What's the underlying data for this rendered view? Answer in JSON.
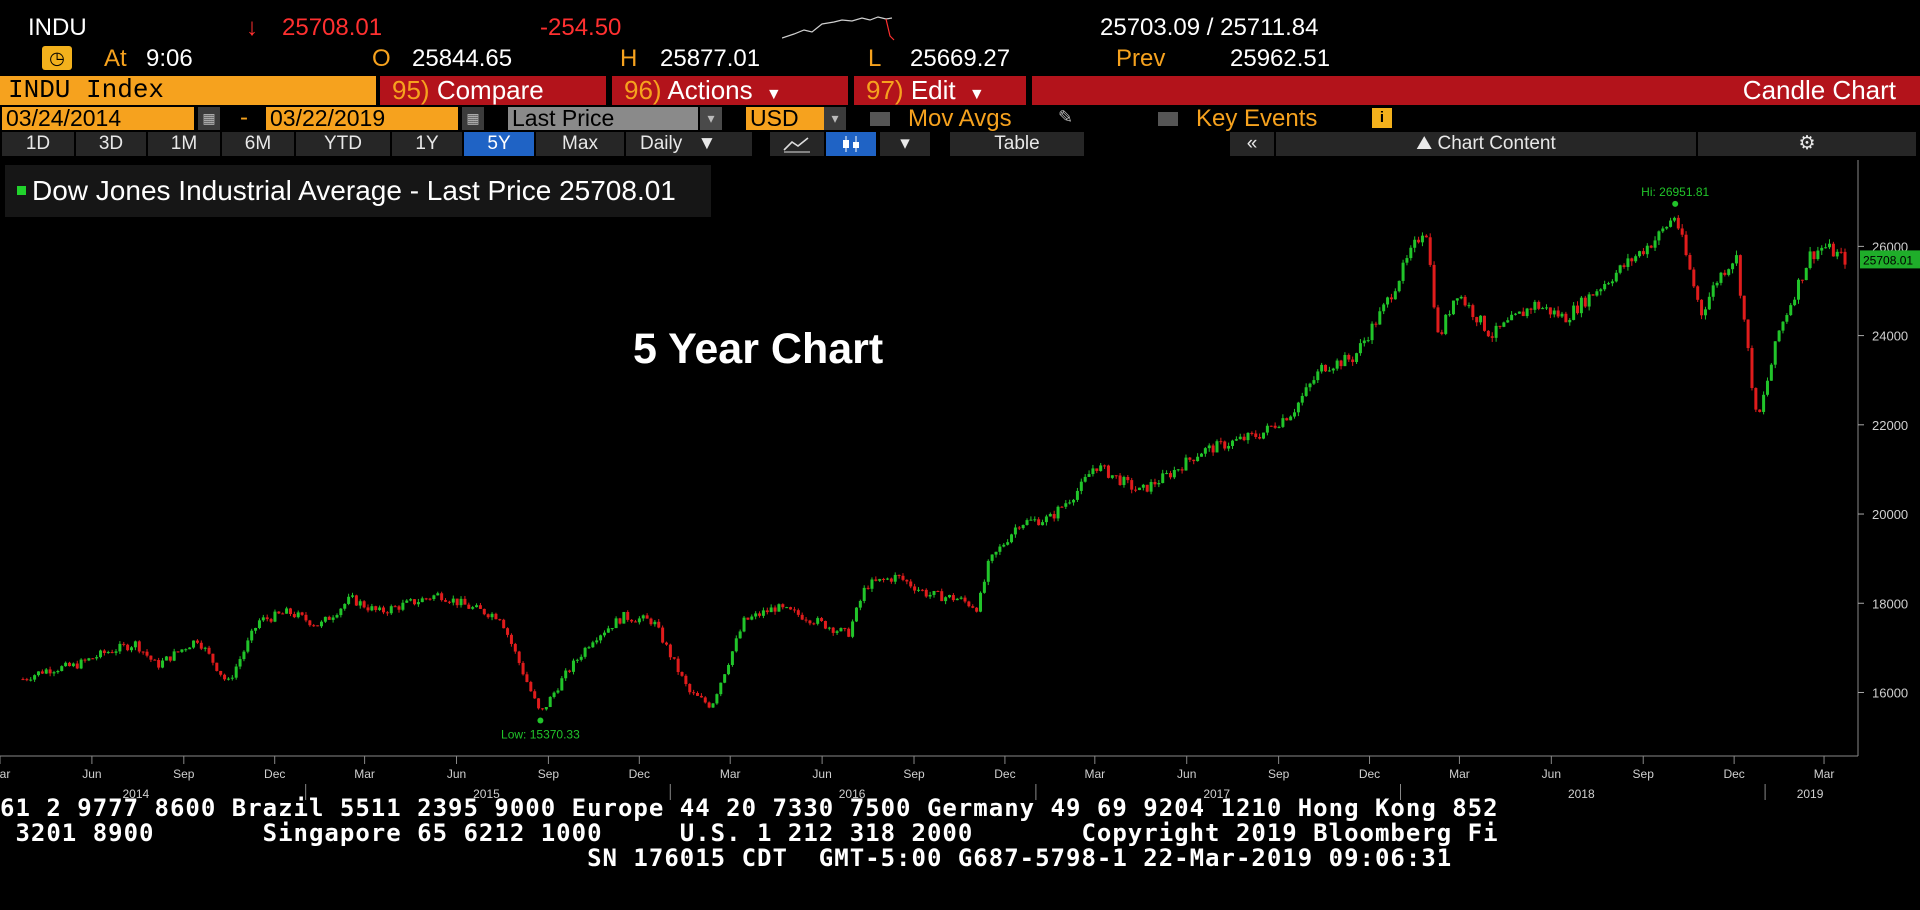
{
  "quote": {
    "ticker": "INDU",
    "arrow": "↓",
    "last": "25708.01",
    "change": "-254.50",
    "bid_ask": "25703.09 / 25711.84",
    "at_label": "At",
    "time": "9:06",
    "open_label": "O",
    "open": "25844.65",
    "high_label": "H",
    "high": "25877.01",
    "low_label": "L",
    "low": "25669.27",
    "prev_label": "Prev",
    "prev": "25962.51"
  },
  "toolbar": {
    "security": "INDU Index",
    "compare_num": "95)",
    "compare": "Compare",
    "actions_num": "96)",
    "actions": "Actions",
    "edit_num": "97)",
    "edit": "Edit",
    "chart_type": "Candle Chart"
  },
  "controls": {
    "start_date": "03/24/2014",
    "dash": "-",
    "end_date": "03/22/2019",
    "field": "Last Price",
    "currency": "USD",
    "mov_avgs": "Mov Avgs",
    "key_events": "Key Events"
  },
  "periods": [
    "1D",
    "3D",
    "1M",
    "6M",
    "YTD",
    "1Y",
    "5Y",
    "Max"
  ],
  "active_period": "5Y",
  "frequency": "Daily",
  "table_label": "Table",
  "chart_content_label": "Chart Content",
  "legend": {
    "series": "Dow Jones Industrial Average - Last Price",
    "value": "25708.01"
  },
  "overlay_title": "5 Year Chart",
  "colors": {
    "up": "#21c42a",
    "down": "#e01c1c",
    "amber": "#f6a21e",
    "negative": "#ff3030",
    "toolbar_red": "#b3131b",
    "active_tab": "#1f63c5"
  },
  "chart_data": {
    "type": "line",
    "style": "candlestick",
    "title": "Dow Jones Industrial Average - Last Price",
    "ylim": [
      14800,
      27600
    ],
    "yticks": [
      16000,
      18000,
      20000,
      22000,
      24000,
      26000
    ],
    "last_value_label": "25708.01",
    "high_annotation": "Hi: 26951.81",
    "low_annotation": "Low: 15370.33",
    "month_labels": [
      "Mar",
      "Jun",
      "Sep",
      "Dec",
      "Mar",
      "Jun",
      "Sep",
      "Dec",
      "Mar",
      "Jun",
      "Sep",
      "Dec",
      "Mar",
      "Jun",
      "Sep",
      "Dec",
      "Mar",
      "Jun",
      "Sep",
      "Dec",
      "Mar"
    ],
    "year_labels": [
      "2014",
      "2015",
      "2016",
      "2017",
      "2018",
      "2019"
    ],
    "series": [
      {
        "name": "Dow Jones Industrial Average",
        "x": [
          "2014-03-24",
          "2014-04-15",
          "2014-05-15",
          "2014-06-15",
          "2014-07-15",
          "2014-08-05",
          "2014-09-15",
          "2014-10-15",
          "2014-11-15",
          "2014-12-15",
          "2015-01-15",
          "2015-02-15",
          "2015-03-15",
          "2015-04-15",
          "2015-05-15",
          "2015-06-15",
          "2015-07-15",
          "2015-08-24",
          "2015-09-15",
          "2015-10-15",
          "2015-11-15",
          "2015-12-15",
          "2016-01-20",
          "2016-02-11",
          "2016-03-15",
          "2016-04-15",
          "2016-05-15",
          "2016-06-27",
          "2016-07-15",
          "2016-08-15",
          "2016-09-15",
          "2016-10-15",
          "2016-11-04",
          "2016-11-15",
          "2016-12-15",
          "2017-01-15",
          "2017-02-15",
          "2017-03-01",
          "2017-04-15",
          "2017-05-15",
          "2017-06-15",
          "2017-07-15",
          "2017-08-15",
          "2017-09-15",
          "2017-10-15",
          "2017-11-15",
          "2017-12-15",
          "2018-01-26",
          "2018-02-08",
          "2018-02-26",
          "2018-04-02",
          "2018-05-15",
          "2018-06-15",
          "2018-07-15",
          "2018-08-15",
          "2018-09-15",
          "2018-10-03",
          "2018-10-29",
          "2018-11-15",
          "2018-12-03",
          "2018-12-24",
          "2019-01-15",
          "2019-02-15",
          "2019-03-01",
          "2019-03-22"
        ],
        "values": [
          16300,
          16500,
          16600,
          16900,
          17100,
          16600,
          17200,
          16200,
          17600,
          17800,
          17500,
          18100,
          17800,
          18000,
          18200,
          17900,
          17700,
          15500,
          16300,
          17200,
          17700,
          17600,
          16000,
          15700,
          17600,
          17900,
          17700,
          17300,
          18400,
          18600,
          18200,
          18100,
          17900,
          18900,
          19800,
          19900,
          20600,
          21100,
          20500,
          20900,
          21400,
          21600,
          21800,
          22300,
          23300,
          23500,
          24600,
          26500,
          23900,
          25000,
          24000,
          24700,
          24400,
          25000,
          25600,
          26200,
          26700,
          24500,
          25300,
          25800,
          22000,
          24100,
          25800,
          26000,
          25708
        ]
      }
    ]
  },
  "footer": {
    "line1": "61 2 9777 8600 Brazil 5511 2395 9000 Europe 44 20 7330 7500 Germany 49 69 9204 1210 Hong Kong 852",
    "line2": " 3201 8900       Singapore 65 6212 1000     U.S. 1 212 318 2000       Copyright 2019 Bloomberg Fi",
    "line3": "                                      SN 176015 CDT  GMT-5:00 G687-5798-1 22-Mar-2019 09:06:31"
  }
}
